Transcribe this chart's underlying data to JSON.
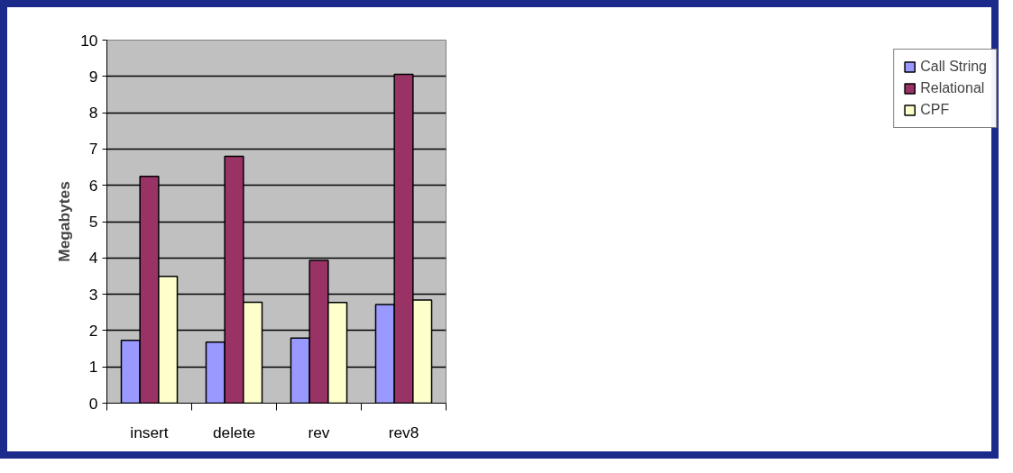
{
  "chart_data": {
    "type": "bar",
    "ylabel": "Megabytes",
    "categories": [
      "insert",
      "delete",
      "rev",
      "rev8"
    ],
    "series": [
      {
        "name": "Call String",
        "color": "#9999ff",
        "values": [
          1.73,
          1.68,
          1.79,
          2.72
        ]
      },
      {
        "name": "Relational",
        "color": "#993366",
        "values": [
          6.25,
          6.8,
          3.93,
          9.06
        ]
      },
      {
        "name": "CPF",
        "color": "#ffffcc",
        "values": [
          3.49,
          2.78,
          2.77,
          2.84
        ]
      }
    ],
    "ylim": [
      0,
      10
    ],
    "yticks": [
      0,
      1,
      2,
      3,
      4,
      5,
      6,
      7,
      8,
      9,
      10
    ],
    "grid": "y",
    "legend": "right"
  }
}
